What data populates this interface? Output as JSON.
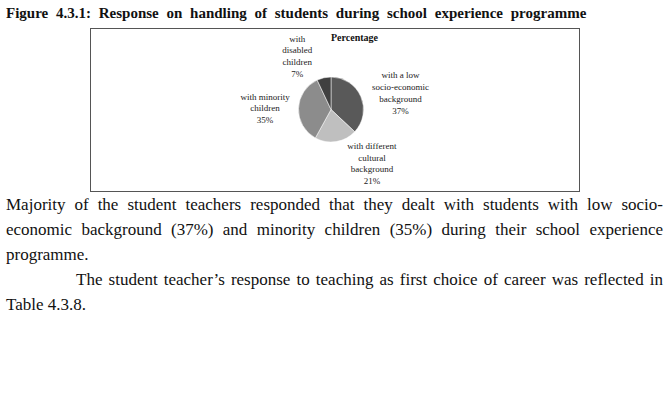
{
  "caption": "Figure 4.3.1: Response on handling of students during school experience programme",
  "chart_data": {
    "type": "pie",
    "title": "Percentage",
    "categories": [
      "with a low\nsocio-economic\nbackground",
      "with different\ncultural\nbackground",
      "with minority\nchildren",
      "with\ndisabled\nchildren"
    ],
    "values": [
      37,
      21,
      35,
      7
    ],
    "value_labels": [
      "37%",
      "21%",
      "35%",
      "7%"
    ],
    "colors": [
      "#595959",
      "#bfbfbf",
      "#8c8c8c",
      "#404040"
    ],
    "data_labels": true
  },
  "paragraphs": [
    "Majority of the student teachers responded that they dealt with students with low socio-economic background (37%) and minority children (35%) during their school experience programme.",
    "The student teacher’s response to teaching as first choice of career was reflected in Table 4.3.8."
  ]
}
